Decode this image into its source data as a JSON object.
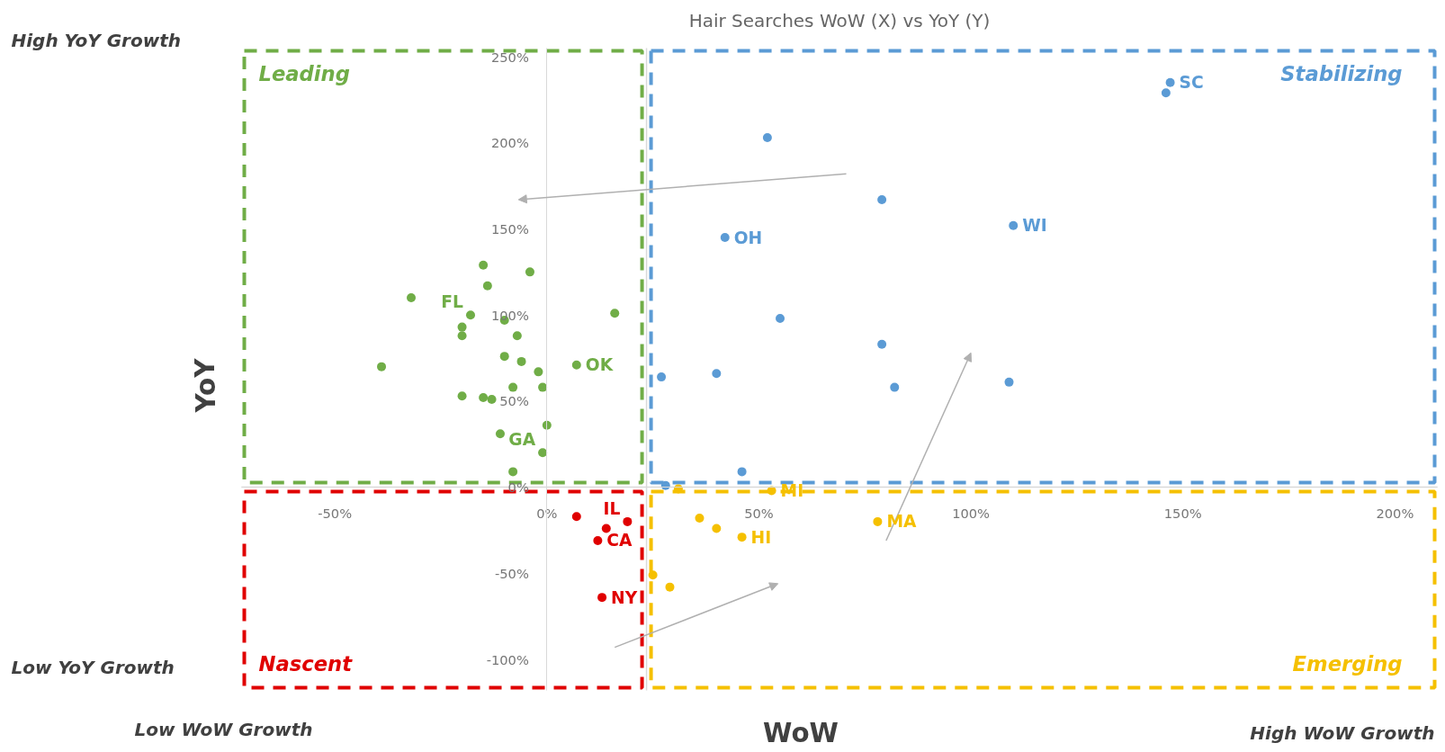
{
  "chart_data": {
    "type": "scatter",
    "title": "Hair Searches WoW (X) vs YoY (Y)",
    "xlabel": "WoW",
    "ylabel": "YoY",
    "xlim": [
      -72,
      210
    ],
    "ylim": [
      -118,
      255
    ],
    "xticks": [
      {
        "value": -50,
        "label": "-50%"
      },
      {
        "value": 0,
        "label": "0%"
      },
      {
        "value": 50,
        "label": "50%"
      },
      {
        "value": 100,
        "label": "100%"
      },
      {
        "value": 150,
        "label": "150%"
      },
      {
        "value": 200,
        "label": "200%"
      }
    ],
    "yticks": [
      {
        "value": -100,
        "label": "-100%"
      },
      {
        "value": -50,
        "label": "-50%"
      },
      {
        "value": 0,
        "label": "0%"
      },
      {
        "value": 50,
        "label": "50%"
      },
      {
        "value": 100,
        "label": "100%"
      },
      {
        "value": 150,
        "label": "150%"
      },
      {
        "value": 200,
        "label": "200%"
      },
      {
        "value": 250,
        "label": "250%"
      }
    ],
    "grid": false,
    "legend": false,
    "marker": "circle",
    "ref_lines": [
      {
        "axis": "x",
        "value": 23.5,
        "label": null,
        "color": "#d9d9d9",
        "line_style": "solid"
      },
      {
        "axis": "y",
        "value": 0,
        "label": null,
        "color": "#d9d9d9",
        "line_style": "solid"
      }
    ],
    "series": [
      {
        "name": "Leading",
        "color": "#70ad47",
        "x": [
          -32,
          -39,
          -15,
          -14,
          -4,
          -18,
          -20,
          -20,
          -10,
          -7,
          16,
          -10,
          -6,
          -2,
          7,
          -20,
          -15,
          -13,
          -8,
          -1,
          0,
          -11,
          -1,
          -8
        ],
        "values": [
          110,
          70,
          129,
          117,
          125,
          100,
          93,
          88,
          97,
          88,
          101,
          76,
          73,
          67,
          71,
          53,
          52,
          51,
          58,
          58,
          36,
          31,
          20,
          9
        ]
      },
      {
        "name": "Stabilizing",
        "color": "#5b9bd5",
        "x": [
          52,
          79,
          42,
          110,
          147,
          146,
          55,
          79,
          40,
          27,
          82,
          109,
          46,
          28
        ],
        "values": [
          203,
          167,
          145,
          152,
          235,
          229,
          98,
          83,
          66,
          64,
          58,
          61,
          9,
          1
        ]
      },
      {
        "name": "Nascent",
        "color": "#e00000",
        "x": [
          7,
          14,
          19,
          12,
          13
        ],
        "values": [
          -17,
          -24,
          -20,
          -31,
          -64
        ]
      },
      {
        "name": "Emerging",
        "color": "#f5c000",
        "x": [
          36,
          40,
          46,
          78,
          25,
          29,
          31,
          53
        ],
        "values": [
          -18,
          -24,
          -29,
          -20,
          -51,
          -58,
          -1,
          -2
        ]
      }
    ],
    "annotations": [
      {
        "text": "FL",
        "x": -18,
        "y": 100
      },
      {
        "text": "OK",
        "x": 7,
        "y": 71
      },
      {
        "text": "GA",
        "x": -1,
        "y": 20
      },
      {
        "text": "SC",
        "x": 147,
        "y": 235
      },
      {
        "text": "OH",
        "x": 42,
        "y": 145
      },
      {
        "text": "WI",
        "x": 110,
        "y": 152
      },
      {
        "text": "IL",
        "x": 19,
        "y": -20
      },
      {
        "text": "CA",
        "x": 12,
        "y": -31
      },
      {
        "text": "NY",
        "x": 13,
        "y": -64
      },
      {
        "text": "MI",
        "x": 53,
        "y": -2
      },
      {
        "text": "MA",
        "x": 78,
        "y": -20
      },
      {
        "text": "HI",
        "x": 46,
        "y": -29
      },
      "High YoY Growth",
      "Low YoY Growth",
      "Low WoW Growth",
      "High WoW Growth"
    ]
  }
}
